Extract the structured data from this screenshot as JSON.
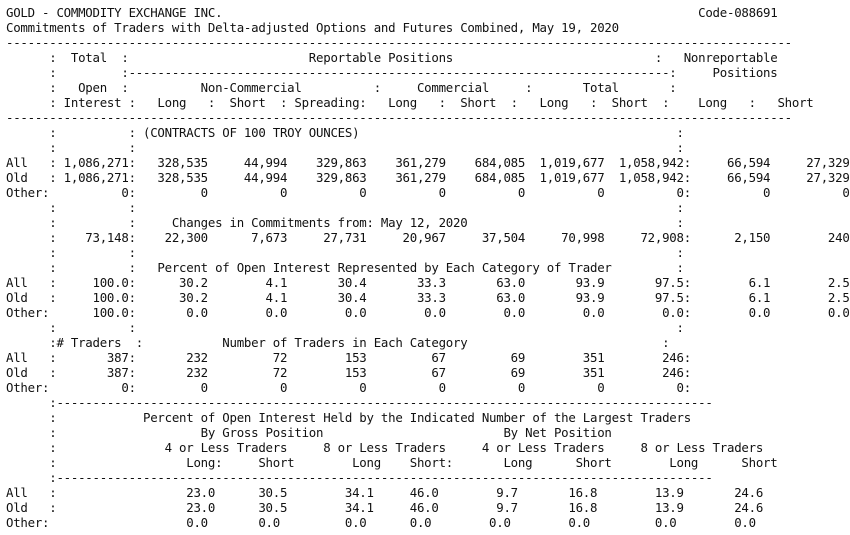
{
  "report": {
    "code": "Code-088691",
    "lines": [
      "GOLD - COMMODITY EXCHANGE INC.                                                                  Code-088691",
      "Commitments of Traders with Delta-adjusted Options and Futures Combined, May 19, 2020",
      "-------------------------------------------------------------------------------------------------------------",
      "      :  Total  :                         Reportable Positions                            :   Nonreportable",
      "      :         :---------------------------------------------------------------------------:     Positions",
      "      :   Open  :          Non-Commercial          :     Commercial     :       Total       :",
      "      : Interest :   Long   :  Short  : Spreading:   Long   :  Short  :   Long   :  Short  :    Long   :   Short",
      "-------------------------------------------------------------------------------------------------------------",
      "      :          : (CONTRACTS OF 100 TROY OUNCES)                                            :",
      "      :          :                                                                           :",
      "All   : 1,086,271:   328,535     44,994    329,863    361,279    684,085  1,019,677  1,058,942:     66,594     27,329",
      "Old   : 1,086,271:   328,535     44,994    329,863    361,279    684,085  1,019,677  1,058,942:     66,594     27,329",
      "Other:          0:         0          0          0          0          0          0          0:          0          0",
      "      :          :                                                                           :",
      "      :          :     Changes in Commitments from: May 12, 2020                             :",
      "      :    73,148:    22,300      7,673     27,731     20,967     37,504     70,998     72,908:      2,150        240",
      "      :          :                                                                           :",
      "      :          :   Percent of Open Interest Represented by Each Category of Trader         :",
      "All   :     100.0:      30.2        4.1       30.4       33.3       63.0       93.9       97.5:        6.1        2.5",
      "Old   :     100.0:      30.2        4.1       30.4       33.3       63.0       93.9       97.5:        6.1        2.5",
      "Other:      100.0:       0.0        0.0        0.0        0.0        0.0        0.0        0.0:        0.0        0.0",
      "      :          :                                                                           :",
      "      :# Traders  :           Number of Traders in Each Category                           :",
      "All   :       387:       232         72        153         67         69        351        246:",
      "Old   :       387:       232         72        153         67         69        351        246:",
      "Other:          0:         0          0          0          0          0          0          0:",
      "      :-------------------------------------------------------------------------------------------",
      "      :            Percent of Open Interest Held by the Indicated Number of the Largest Traders",
      "      :                    By Gross Position                         By Net Position",
      "      :               4 or Less Traders     8 or Less Traders     4 or Less Traders     8 or Less Traders",
      "      :                  Long:     Short        Long    Short:       Long      Short        Long      Short",
      "      :-------------------------------------------------------------------------------------------",
      "All   :                  23.0      30.5        34.1     46.0        9.7       16.8        13.9       24.6",
      "Old   :                  23.0      30.5        34.1     46.0        9.7       16.8        13.9       24.6",
      "Other:                   0.0       0.0         0.0      0.0        0.0        0.0         0.0        0.0"
    ]
  }
}
